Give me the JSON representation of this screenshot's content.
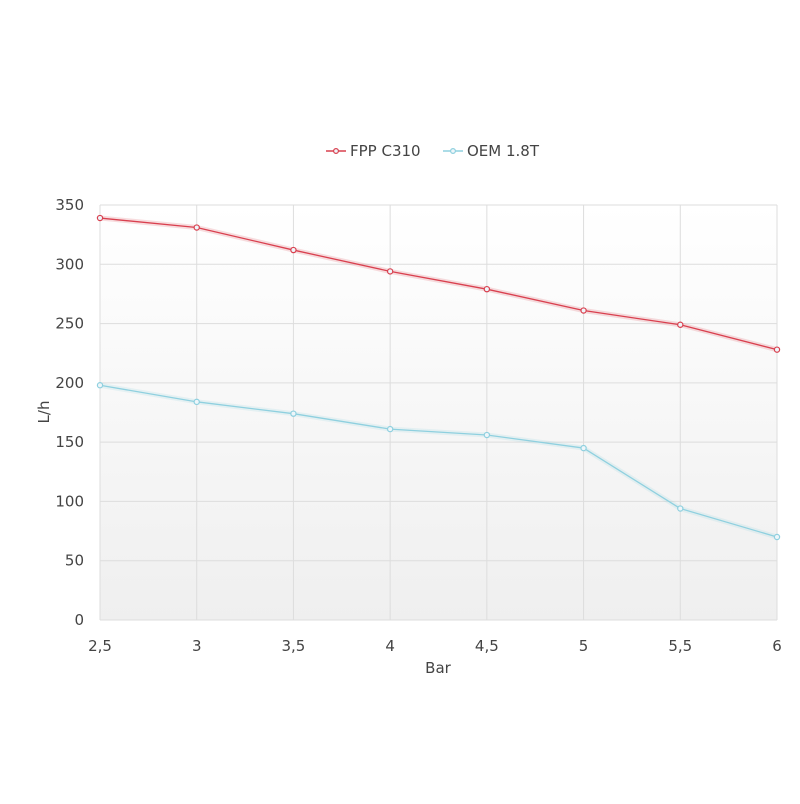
{
  "chart_data": {
    "type": "line",
    "title": "",
    "xlabel": "Bar",
    "ylabel": "L/h",
    "categories": [
      "2,5",
      "3",
      "3,5",
      "4",
      "4,5",
      "5",
      "5,5",
      "6"
    ],
    "x": [
      2.5,
      3,
      3.5,
      4,
      4.5,
      5,
      5.5,
      6
    ],
    "xlim": [
      2.5,
      6
    ],
    "ylim": [
      0,
      350
    ],
    "yticks": [
      0,
      50,
      100,
      150,
      200,
      250,
      300,
      350
    ],
    "ytick_labels": [
      "0",
      "50",
      "100",
      "150",
      "200",
      "250",
      "300",
      "350"
    ],
    "grid": true,
    "legend_position": "top-center",
    "series": [
      {
        "name": "FPP C310",
        "color": "#d9404f",
        "values": [
          339,
          331,
          312,
          294,
          279,
          261,
          249,
          228
        ]
      },
      {
        "name": "OEM 1.8T",
        "color": "#8fd0df",
        "values": [
          198,
          184,
          174,
          161,
          156,
          145,
          94,
          70
        ]
      }
    ]
  }
}
